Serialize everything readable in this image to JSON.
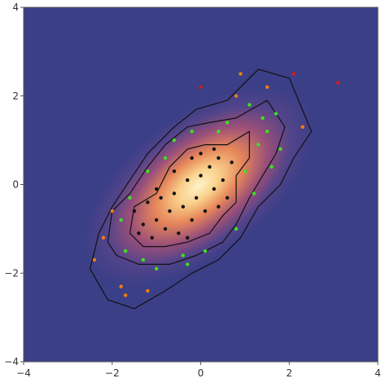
{
  "chart_data": {
    "type": "scatter",
    "title": "",
    "xlabel": "",
    "ylabel": "",
    "xlim": [
      -4,
      4
    ],
    "ylim": [
      -4,
      4
    ],
    "grid": false,
    "background": "density-heatmap",
    "x_ticks": [
      -4,
      -2,
      0,
      2,
      4
    ],
    "y_ticks": [
      -4,
      -2,
      0,
      2,
      4
    ],
    "x_tick_labels": [
      "−4",
      "−2",
      "0",
      "2",
      "4"
    ],
    "y_tick_labels": [
      "−4",
      "−2",
      "0",
      "2",
      "4"
    ],
    "colors": {
      "background_low": "#3b3f87",
      "background_high": "#fff4c8",
      "contour": "#111111",
      "inner": "#111111",
      "middle": "#3fe020",
      "outer": "#f07f10",
      "extreme": "#d81818"
    },
    "contours": [
      {
        "level": "inner",
        "points": [
          [
            -1.6,
            -1.1
          ],
          [
            -1.5,
            -0.5
          ],
          [
            -1.0,
            -0.2
          ],
          [
            -0.7,
            0.4
          ],
          [
            -0.3,
            0.8
          ],
          [
            0.1,
            0.9
          ],
          [
            0.6,
            0.9
          ],
          [
            1.1,
            1.2
          ],
          [
            1.1,
            0.6
          ],
          [
            0.8,
            0.2
          ],
          [
            0.8,
            -0.4
          ],
          [
            0.5,
            -0.7
          ],
          [
            0.2,
            -1.1
          ],
          [
            -0.3,
            -1.3
          ],
          [
            -0.8,
            -1.4
          ],
          [
            -1.3,
            -1.4
          ],
          [
            -1.6,
            -1.1
          ]
        ]
      },
      {
        "level": "middle",
        "points": [
          [
            -2.1,
            -1.3
          ],
          [
            -2.0,
            -0.6
          ],
          [
            -1.6,
            -0.2
          ],
          [
            -1.2,
            0.4
          ],
          [
            -0.8,
            0.9
          ],
          [
            -0.3,
            1.3
          ],
          [
            0.2,
            1.4
          ],
          [
            0.8,
            1.5
          ],
          [
            1.5,
            1.9
          ],
          [
            1.9,
            1.3
          ],
          [
            1.7,
            0.7
          ],
          [
            1.4,
            0.2
          ],
          [
            1.1,
            -0.3
          ],
          [
            0.8,
            -0.9
          ],
          [
            0.5,
            -1.3
          ],
          [
            -0.1,
            -1.6
          ],
          [
            -0.7,
            -1.8
          ],
          [
            -1.4,
            -1.8
          ],
          [
            -1.9,
            -1.6
          ],
          [
            -2.1,
            -1.3
          ]
        ]
      },
      {
        "level": "outer",
        "points": [
          [
            -2.5,
            -1.9
          ],
          [
            -2.3,
            -1.1
          ],
          [
            -2.0,
            -0.5
          ],
          [
            -1.6,
            0.1
          ],
          [
            -1.2,
            0.7
          ],
          [
            -0.6,
            1.3
          ],
          [
            -0.1,
            1.7
          ],
          [
            0.6,
            1.9
          ],
          [
            1.3,
            2.6
          ],
          [
            2.0,
            2.4
          ],
          [
            2.5,
            1.2
          ],
          [
            2.1,
            0.6
          ],
          [
            1.8,
            0.0
          ],
          [
            1.3,
            -0.5
          ],
          [
            0.9,
            -1.2
          ],
          [
            0.4,
            -1.7
          ],
          [
            -0.2,
            -2.0
          ],
          [
            -0.8,
            -2.4
          ],
          [
            -1.5,
            -2.8
          ],
          [
            -2.1,
            -2.6
          ],
          [
            -2.5,
            -1.9
          ]
        ]
      }
    ],
    "series": [
      {
        "group": "inner",
        "points": [
          [
            -1.5,
            -0.6
          ],
          [
            -1.3,
            -0.9
          ],
          [
            -1.2,
            -0.4
          ],
          [
            -1.1,
            -1.2
          ],
          [
            -1.0,
            -0.8
          ],
          [
            -0.9,
            -0.3
          ],
          [
            -0.8,
            -1.0
          ],
          [
            -0.7,
            -0.6
          ],
          [
            -0.6,
            -0.2
          ],
          [
            -0.5,
            -1.1
          ],
          [
            -0.4,
            -0.5
          ],
          [
            -0.3,
            0.1
          ],
          [
            -0.2,
            -0.8
          ],
          [
            -0.1,
            -0.3
          ],
          [
            0.0,
            0.2
          ],
          [
            0.1,
            -0.6
          ],
          [
            0.2,
            0.4
          ],
          [
            0.3,
            -0.1
          ],
          [
            0.4,
            0.6
          ],
          [
            0.5,
            0.1
          ],
          [
            0.6,
            -0.3
          ],
          [
            0.7,
            0.5
          ],
          [
            -0.2,
            0.6
          ],
          [
            0.0,
            0.7
          ],
          [
            0.3,
            0.8
          ],
          [
            -0.6,
            0.3
          ],
          [
            -1.0,
            -0.1
          ],
          [
            -1.4,
            -1.1
          ],
          [
            -0.3,
            -1.2
          ],
          [
            0.4,
            -0.5
          ]
        ]
      },
      {
        "group": "middle",
        "points": [
          [
            -1.8,
            -0.8
          ],
          [
            -1.7,
            -1.5
          ],
          [
            -1.6,
            -0.3
          ],
          [
            -1.3,
            -1.7
          ],
          [
            -1.2,
            0.3
          ],
          [
            -0.8,
            0.6
          ],
          [
            -0.6,
            1.0
          ],
          [
            -0.4,
            -1.6
          ],
          [
            -0.2,
            1.2
          ],
          [
            0.1,
            -1.5
          ],
          [
            0.4,
            1.2
          ],
          [
            0.8,
            -1.0
          ],
          [
            1.0,
            0.3
          ],
          [
            1.2,
            -0.2
          ],
          [
            1.3,
            0.9
          ],
          [
            1.5,
            1.2
          ],
          [
            1.6,
            0.4
          ],
          [
            1.7,
            1.6
          ],
          [
            1.8,
            0.8
          ],
          [
            1.4,
            1.5
          ],
          [
            -1.0,
            -1.9
          ],
          [
            -0.3,
            -1.8
          ],
          [
            0.6,
            1.4
          ],
          [
            1.1,
            1.8
          ]
        ]
      },
      {
        "group": "outer",
        "points": [
          [
            -2.4,
            -1.7
          ],
          [
            -2.2,
            -1.2
          ],
          [
            -1.8,
            -2.3
          ],
          [
            -1.7,
            -2.5
          ],
          [
            -1.2,
            -2.4
          ],
          [
            0.8,
            2.0
          ],
          [
            1.5,
            2.2
          ],
          [
            2.3,
            1.3
          ],
          [
            0.9,
            2.5
          ],
          [
            -2.0,
            -0.6
          ]
        ]
      },
      {
        "group": "extreme",
        "points": [
          [
            0.0,
            2.2
          ],
          [
            2.1,
            2.5
          ],
          [
            3.1,
            2.3
          ]
        ]
      }
    ]
  }
}
